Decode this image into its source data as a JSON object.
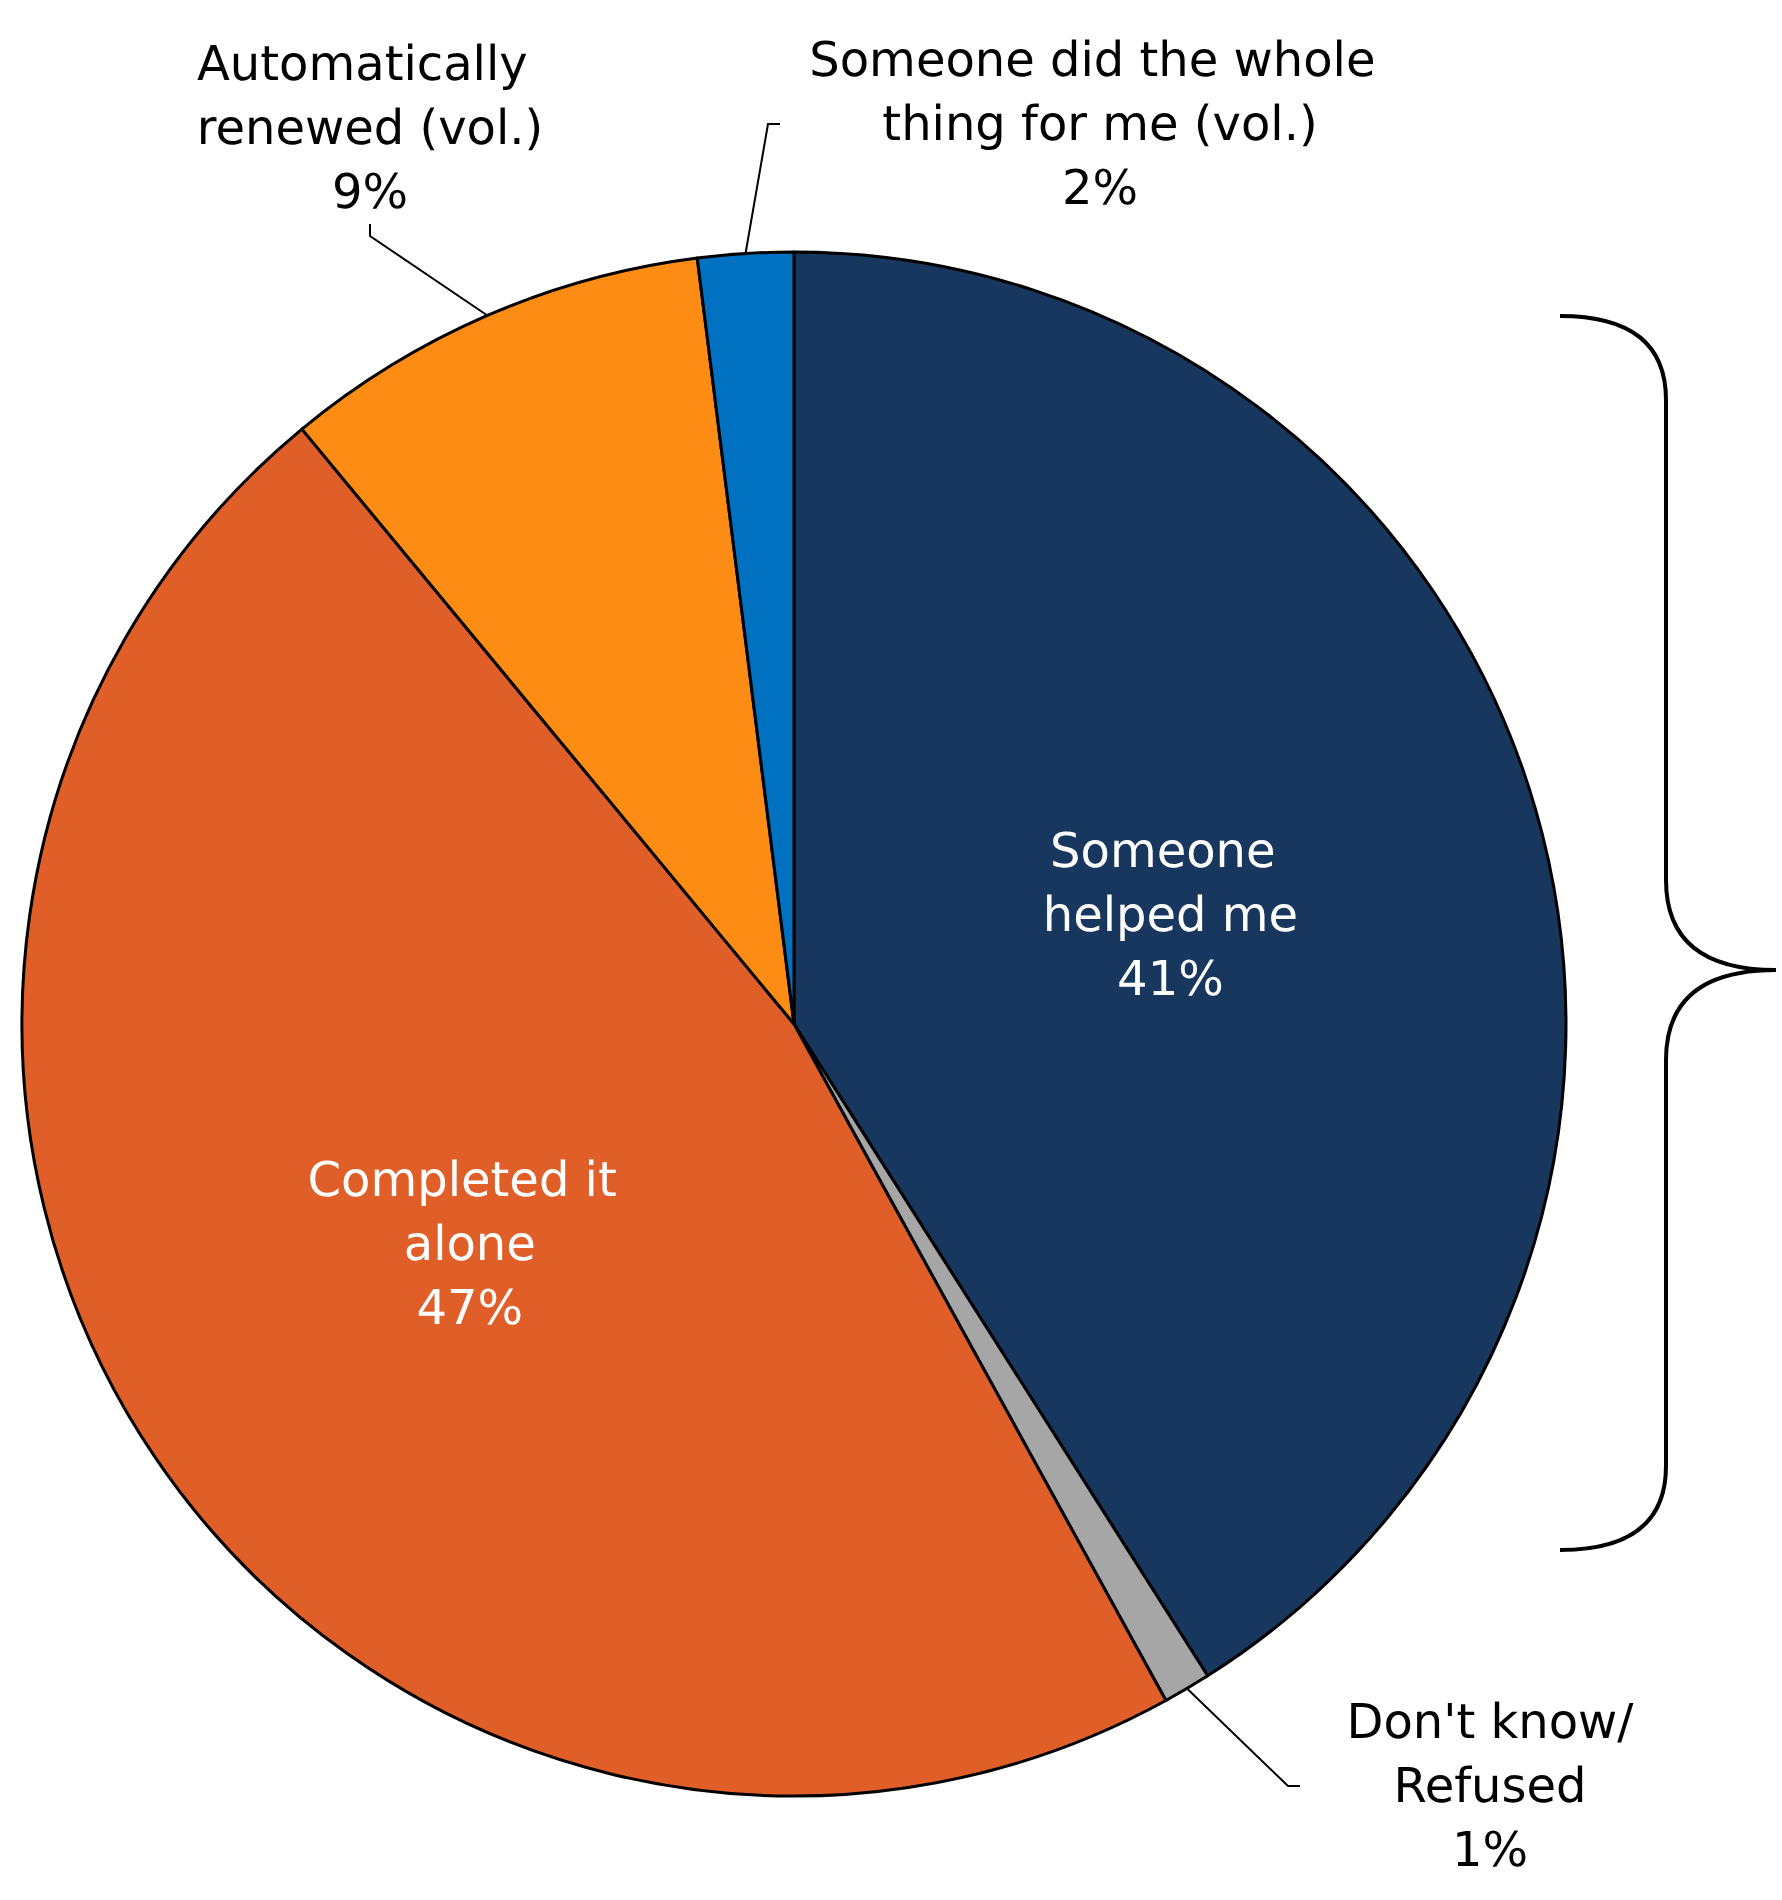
{
  "chart_data": {
    "type": "pie",
    "categories": [
      "Someone helped me",
      "Don't know/Refused",
      "Completed it alone",
      "Automatically renewed (vol.)",
      "Someone did the whole thing for me (vol.)"
    ],
    "values": [
      41,
      1,
      47,
      9,
      2
    ],
    "value_labels": [
      "41%",
      "1%",
      "47%",
      "9%",
      "2%"
    ],
    "colors": [
      "#17375e",
      "#a6a6a6",
      "#e05f28",
      "#fd8c14",
      "#0070c0"
    ],
    "legend": false
  }
}
